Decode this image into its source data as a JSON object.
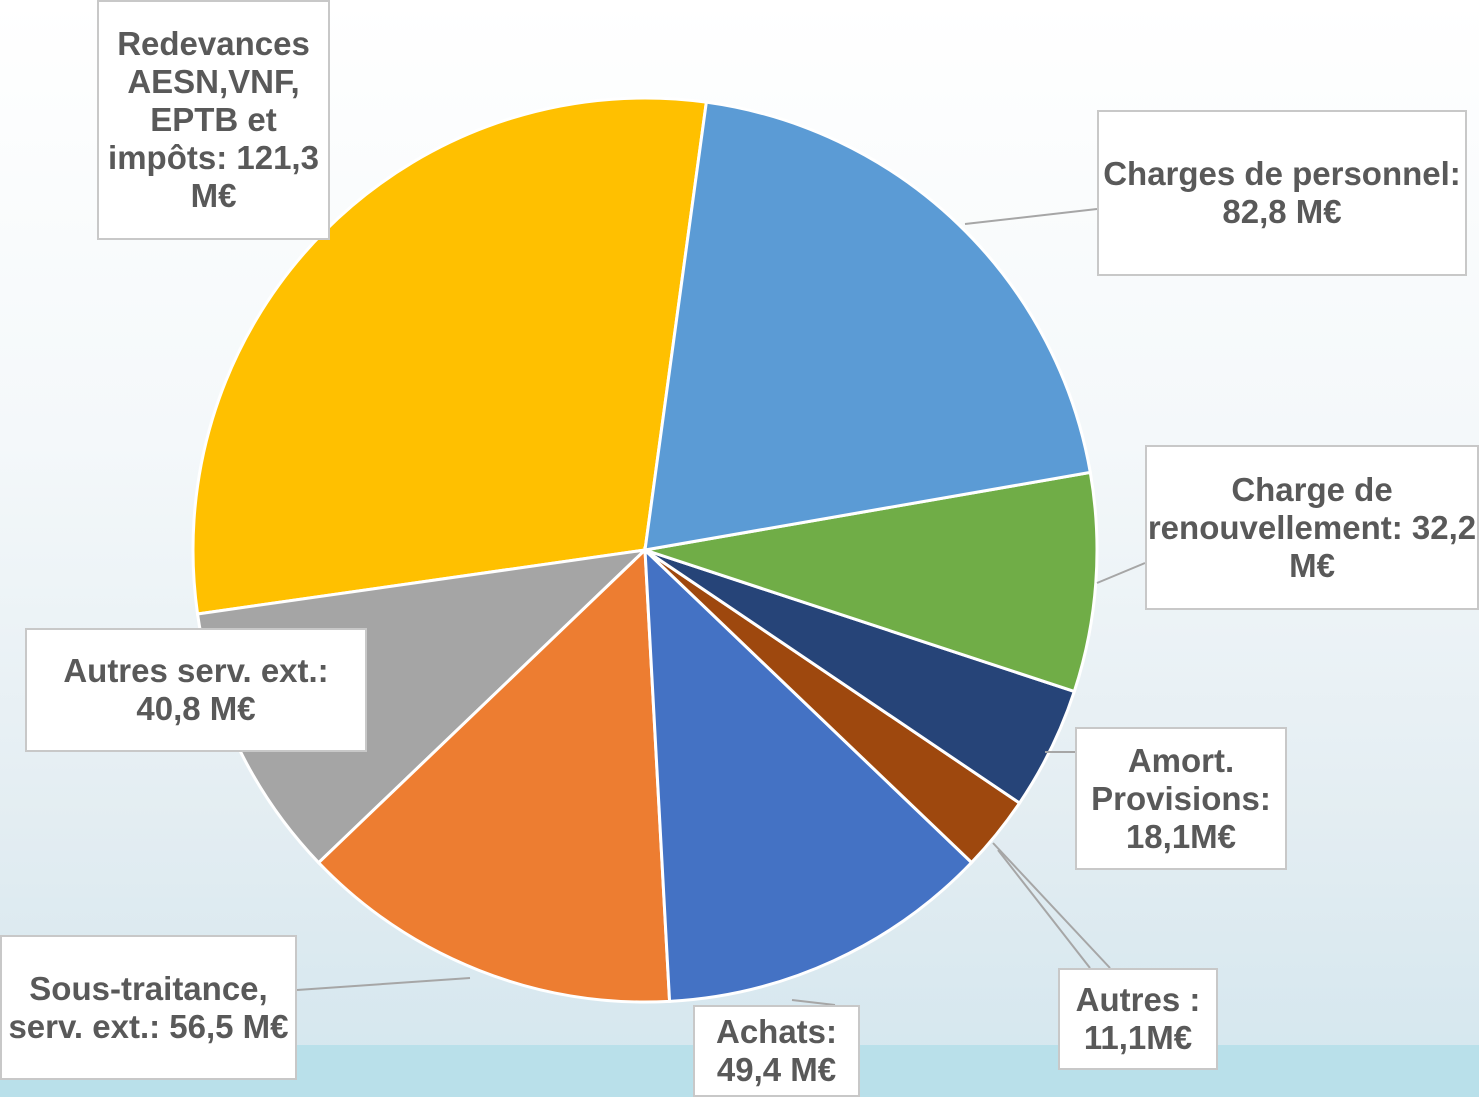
{
  "chart_data": {
    "type": "pie",
    "categories": [
      "Charges de personnel:",
      "Charge de renouvellement:",
      "Amort. Provisions:",
      "Autres :",
      "Achats:",
      "Sous-traitance, serv. ext.:",
      "Autres serv. ext.:",
      "Redevances AESN,VNF, EPTB et impôts:"
    ],
    "values": [
      82.8,
      32.2,
      18.1,
      11.1,
      49.4,
      56.5,
      40.8,
      121.3
    ],
    "value_labels": [
      "82,8 M€",
      "32,2 M€",
      "18,1M€",
      "11,1M€",
      "49,4 M€",
      "56,5 M€",
      "40,8 M€",
      "121,3 M€"
    ],
    "colors": [
      "#5b9bd5",
      "#70ad47",
      "#264478",
      "#9e480e",
      "#4472c4",
      "#ed7d31",
      "#a5a5a5",
      "#ffc000"
    ]
  }
}
